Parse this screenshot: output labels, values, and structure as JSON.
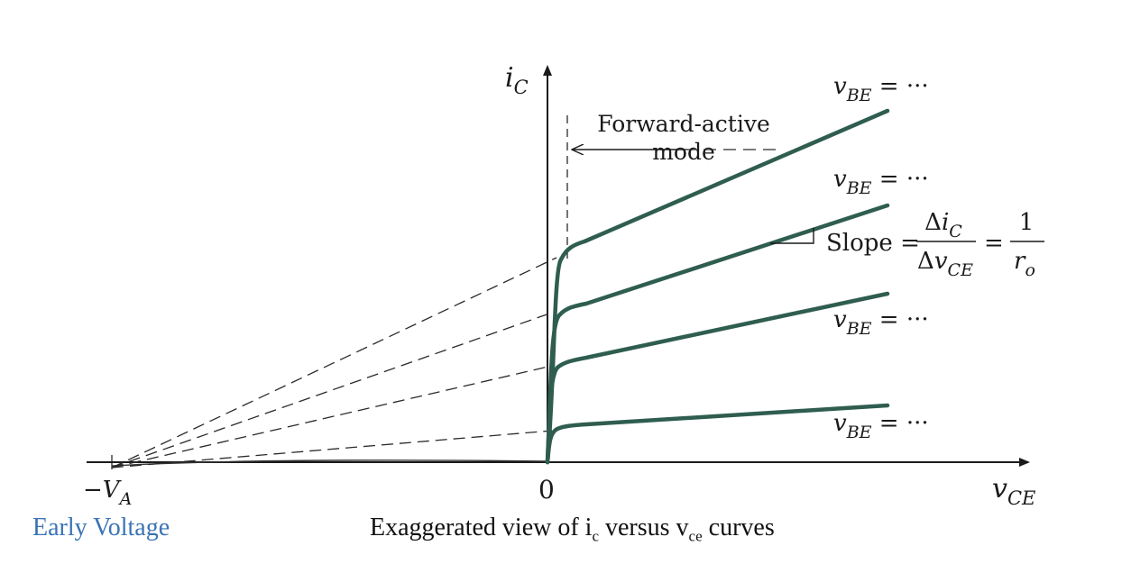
{
  "diagram": {
    "y_axis": {
      "var": "i",
      "sub": "C"
    },
    "x_axis": {
      "var": "v",
      "sub": "CE"
    },
    "origin_label": "0",
    "early_label": {
      "prefix": "−V",
      "sub": "A"
    },
    "mode_label": [
      "Forward-active",
      "mode"
    ],
    "curve_labels": [
      {
        "var": "v",
        "sub": "BE",
        "rest": " = ···"
      },
      {
        "var": "v",
        "sub": "BE",
        "rest": " = ···"
      },
      {
        "var": "v",
        "sub": "BE",
        "rest": " = ···"
      },
      {
        "var": "v",
        "sub": "BE",
        "rest": " = ···"
      }
    ],
    "slope": {
      "word": "Slope =",
      "num": {
        "delta": "Δ",
        "var": "i",
        "sub": "C"
      },
      "den": {
        "delta": "Δ",
        "var": "v",
        "sub": "CE"
      },
      "equals": "=",
      "num2": "1",
      "den2": {
        "var": "r",
        "sub": "o"
      }
    },
    "colors": {
      "curve": "#2f5d50",
      "axis": "#1a1a1a",
      "dash": "#2a2a2a"
    }
  },
  "captions": {
    "early": "Early Voltage",
    "main_parts": [
      "Exaggerated view of i",
      "c",
      " versus v",
      "ce",
      " curves"
    ]
  }
}
